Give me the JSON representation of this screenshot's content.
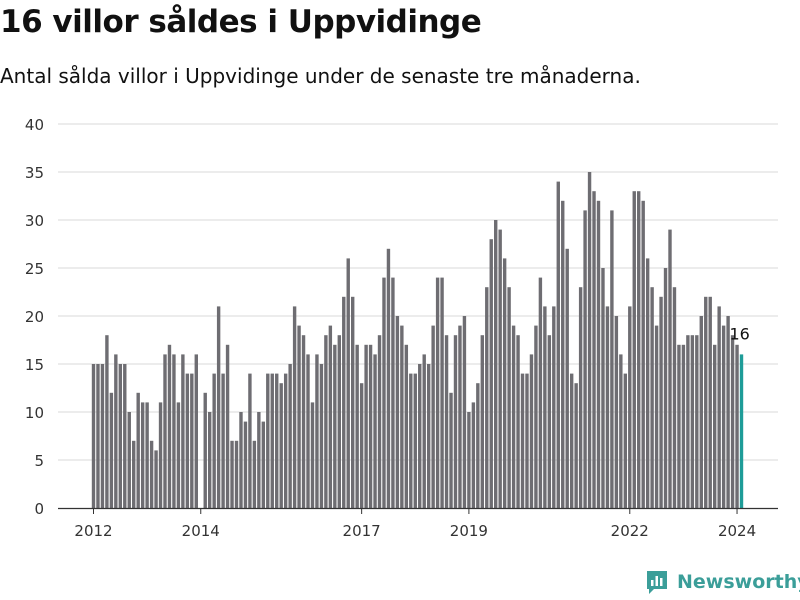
{
  "header": {
    "title": "16 villor såldes i Uppvidinge",
    "subtitle": "Antal sålda villor i Uppvidinge under de senaste tre månaderna."
  },
  "brand": {
    "name": "Newsworthy",
    "icon": "newsworthy-logo-icon",
    "color": "#3b9e99"
  },
  "colors": {
    "bar": "#6e6d72",
    "highlight": "#1e9c98",
    "grid": "#d9d9d9",
    "axis": "#333333"
  },
  "chart_data": {
    "type": "bar",
    "title": "16 villor såldes i Uppvidinge",
    "xlabel": "",
    "ylabel": "",
    "ylim": [
      0,
      40
    ],
    "yticks": [
      0,
      5,
      10,
      15,
      20,
      25,
      30,
      35,
      40
    ],
    "grid": true,
    "start": "2012-01",
    "frequency": "monthly",
    "xticks": [
      {
        "label": "2012",
        "index": 0
      },
      {
        "label": "2014",
        "index": 24
      },
      {
        "label": "2017",
        "index": 60
      },
      {
        "label": "2019",
        "index": 84
      },
      {
        "label": "2022",
        "index": 120
      },
      {
        "label": "2024",
        "index": 144
      }
    ],
    "values": [
      15,
      15,
      15,
      18,
      12,
      16,
      15,
      15,
      10,
      7,
      12,
      11,
      11,
      7,
      6,
      11,
      16,
      17,
      16,
      11,
      16,
      14,
      14,
      16,
      0,
      12,
      10,
      14,
      21,
      14,
      17,
      7,
      7,
      10,
      9,
      14,
      7,
      10,
      9,
      14,
      14,
      14,
      13,
      14,
      15,
      21,
      19,
      18,
      16,
      11,
      16,
      15,
      18,
      19,
      17,
      18,
      22,
      26,
      22,
      17,
      13,
      17,
      17,
      16,
      18,
      24,
      27,
      24,
      20,
      19,
      17,
      14,
      14,
      15,
      16,
      15,
      19,
      24,
      24,
      18,
      12,
      18,
      19,
      20,
      10,
      11,
      13,
      18,
      23,
      28,
      30,
      29,
      26,
      23,
      19,
      18,
      14,
      14,
      16,
      19,
      24,
      21,
      18,
      21,
      34,
      32,
      27,
      14,
      13,
      23,
      31,
      35,
      33,
      32,
      25,
      21,
      31,
      20,
      16,
      14,
      21,
      33,
      33,
      32,
      26,
      23,
      19,
      22,
      25,
      29,
      23,
      17,
      17,
      18,
      18,
      18,
      20,
      22,
      22,
      17,
      21,
      19,
      20,
      18,
      17,
      16
    ],
    "annotation": {
      "text": "16",
      "index": 145
    },
    "highlight_index": 145
  }
}
